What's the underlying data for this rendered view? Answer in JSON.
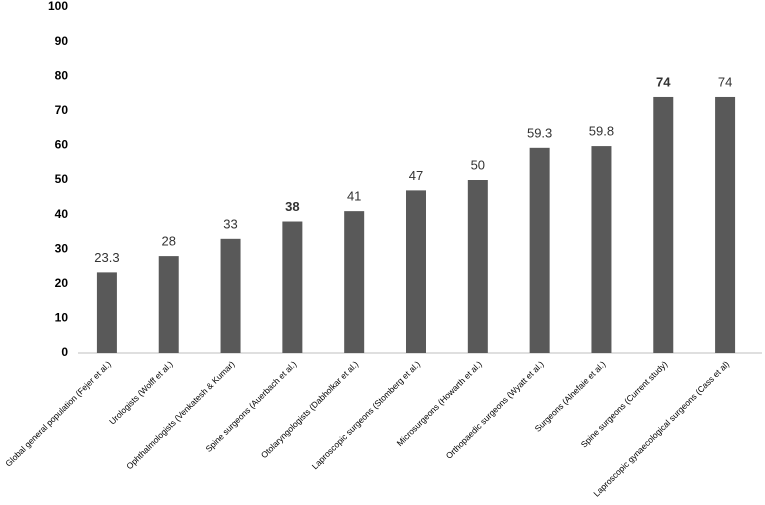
{
  "chart_data": {
    "type": "bar",
    "categories": [
      "Global general population (Fejer et al.)",
      "Urologists (Wolff et al.)",
      "Ophthalmologists (Venkatesh & Kumar)",
      "Spine surgeons (Auerbach et al.)",
      "Otolaryngologists (Dabholkar et al.)",
      "Laproscopic surgeons (Stomberg et al.)",
      "Microsurgeons (Howarth et al.)",
      "Orthopaedic surgeons (Wyatt et al.)",
      "Surgeons (Alnefaie et al.)",
      "Spine surgeons (Current study)",
      "Laproscopic gynaecological surgeons (Cass et al)"
    ],
    "values": [
      23.3,
      28,
      33,
      38,
      41,
      47,
      50,
      59.3,
      59.8,
      74,
      74
    ],
    "color": "#595959",
    "ylim": [
      0,
      100
    ],
    "yticks": [
      0,
      10,
      20,
      30,
      40,
      50,
      60,
      70,
      80,
      90,
      100
    ],
    "grid": false
  }
}
